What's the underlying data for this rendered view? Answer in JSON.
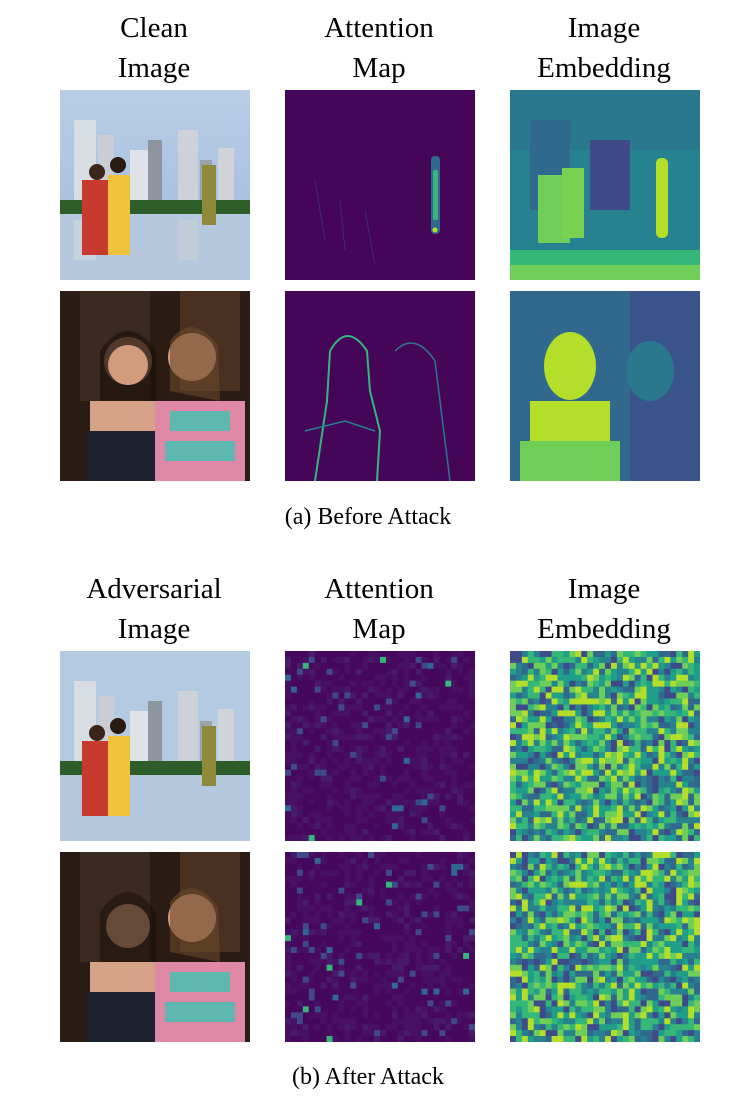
{
  "sections": [
    {
      "caption": "(a) Before Attack",
      "columns": [
        {
          "line1": "Clean",
          "line2": "Image"
        },
        {
          "line1": "Attention",
          "line2": "Map"
        },
        {
          "line1": "Image",
          "line2": "Embedding"
        }
      ],
      "rows": [
        {
          "image": "city-skyline-couple-photo",
          "attention": "sparse-heatmap",
          "embedding": "structured-heatmap"
        },
        {
          "image": "two-women-portrait-photo",
          "attention": "outline-heatmap",
          "embedding": "structured-heatmap"
        }
      ]
    },
    {
      "caption": "(b) After Attack",
      "columns": [
        {
          "line1": "Adversarial",
          "line2": "Image"
        },
        {
          "line1": "Attention",
          "line2": "Map"
        },
        {
          "line1": "Image",
          "line2": "Embedding"
        }
      ],
      "rows": [
        {
          "image": "city-skyline-couple-photo",
          "attention": "noisy-heatmap",
          "embedding": "noisy-heatmap"
        },
        {
          "image": "two-women-portrait-photo",
          "attention": "noisy-heatmap",
          "embedding": "noisy-heatmap"
        }
      ]
    }
  ],
  "colors": {
    "viridis_dark": "#440154",
    "viridis_blue": "#31688e",
    "viridis_green": "#35b779",
    "viridis_yellow": "#fde725"
  }
}
